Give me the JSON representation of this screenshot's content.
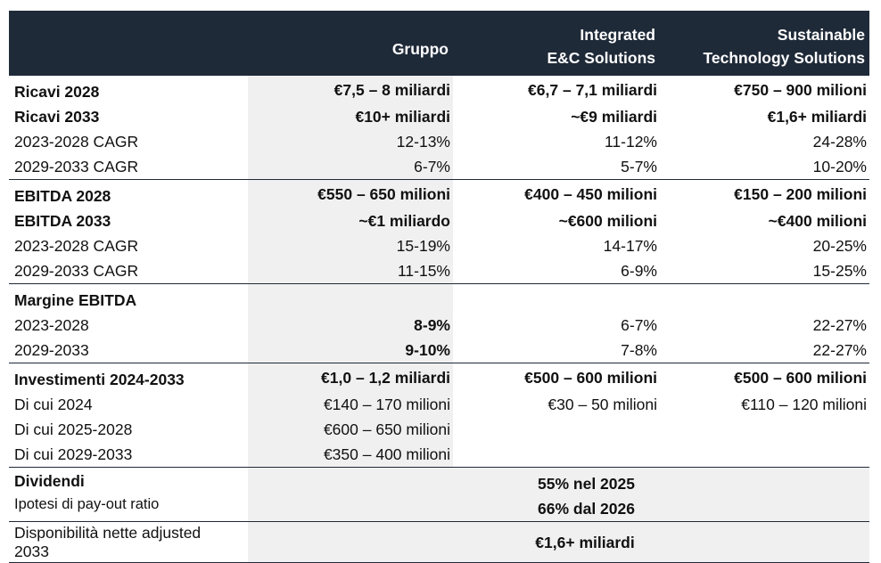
{
  "header": {
    "col1": "Gruppo",
    "col2_line1": "Integrated",
    "col2_line2": "E&C Solutions",
    "col3_line1": "Sustainable",
    "col3_line2": "Technology Solutions"
  },
  "ricavi": [
    {
      "label": "Ricavi 2028",
      "gruppo": "€7,5 – 8 miliardi",
      "ec": "€6,7 – 7,1 miliardi",
      "sts": "€750 – 900 milioni"
    },
    {
      "label": "Ricavi 2033",
      "gruppo": "€10+ miliardi",
      "ec": "~€9 miliardi",
      "sts": "€1,6+ miliardi"
    },
    {
      "label": "2023-2028 CAGR",
      "gruppo": "12-13%",
      "ec": "11-12%",
      "sts": "24-28%"
    },
    {
      "label": "2029-2033 CAGR",
      "gruppo": "6-7%",
      "ec": "5-7%",
      "sts": "10-20%"
    }
  ],
  "ebitda": [
    {
      "label": "EBITDA 2028",
      "gruppo": "€550 – 650 milioni",
      "ec": "€400 – 450 milioni",
      "sts": "€150 – 200 milioni"
    },
    {
      "label": "EBITDA 2033",
      "gruppo": "~€1 miliardo",
      "ec": "~€600 milioni",
      "sts": "~€400 milioni"
    },
    {
      "label": "2023-2028 CAGR",
      "gruppo": "15-19%",
      "ec": "14-17%",
      "sts": "20-25%"
    },
    {
      "label": "2029-2033 CAGR",
      "gruppo": "11-15%",
      "ec": "6-9%",
      "sts": "15-25%"
    }
  ],
  "margine": [
    {
      "label": "Margine EBITDA",
      "gruppo": "",
      "ec": "",
      "sts": ""
    },
    {
      "label": "2023-2028",
      "gruppo": "8-9%",
      "ec": "6-7%",
      "sts": "22-27%"
    },
    {
      "label": "2029-2033",
      "gruppo": "9-10%",
      "ec": "7-8%",
      "sts": "22-27%"
    }
  ],
  "investimenti": [
    {
      "label": "Investimenti 2024-2033",
      "gruppo": "€1,0 – 1,2 miliardi",
      "ec": "€500 – 600 milioni",
      "sts": "€500 – 600 milioni"
    },
    {
      "label": "Di cui 2024",
      "gruppo": "€140 – 170 milioni",
      "ec": "€30 – 50 milioni",
      "sts": "€110 – 120 milioni"
    },
    {
      "label": "Di cui 2025-2028",
      "gruppo": "€600 – 650 milioni",
      "ec": "",
      "sts": ""
    },
    {
      "label": "Di cui 2029-2033",
      "gruppo": "€350 – 400 milioni",
      "ec": "",
      "sts": ""
    }
  ],
  "dividendi": {
    "label": "Dividendi",
    "sublabel": "Ipotesi di pay-out ratio",
    "line1": "55% nel 2025",
    "line2": "66% dal 2026"
  },
  "disponibilita": {
    "label_line1": "Disponibilità nette adjusted",
    "label_line2": "2033",
    "value": "€1,6+ miliardi"
  }
}
